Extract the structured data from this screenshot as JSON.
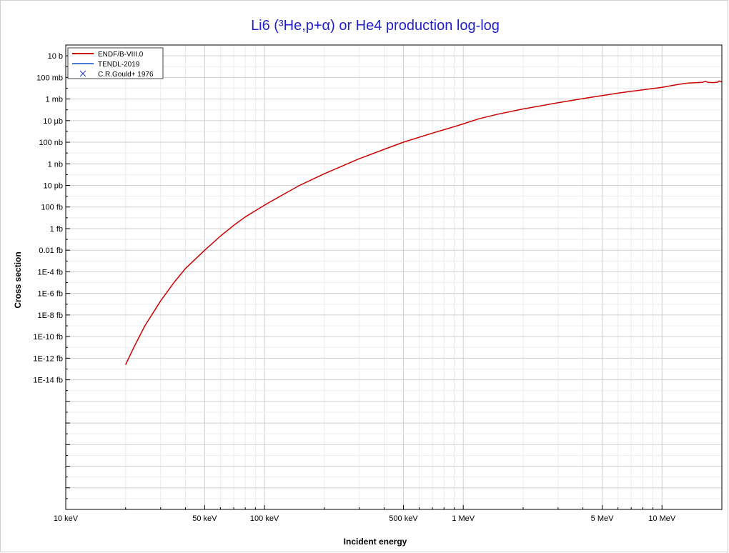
{
  "chart_data": {
    "type": "line",
    "title": "Li6 (³He,p+α) or He4 production log-log",
    "xlabel": "Incident energy",
    "ylabel": "Cross section",
    "x_scale": "log",
    "y_scale": "log",
    "x_unit": "MeV",
    "y_unit": "barn",
    "xlim": [
      0.01,
      20
    ],
    "ylim": [
      1e-41,
      100
    ],
    "grid": true,
    "legend_position": "top-left",
    "x_ticks": [
      {
        "value": 0.01,
        "label": "10 keV"
      },
      {
        "value": 0.05,
        "label": "50 keV"
      },
      {
        "value": 0.1,
        "label": "100 keV"
      },
      {
        "value": 0.5,
        "label": "500 keV"
      },
      {
        "value": 1,
        "label": "1 MeV"
      },
      {
        "value": 5,
        "label": "5 MeV"
      },
      {
        "value": 10,
        "label": "10 MeV"
      }
    ],
    "y_ticks": [
      {
        "value": 10,
        "label": "10 b"
      },
      {
        "value": 0.1,
        "label": "100 mb"
      },
      {
        "value": 0.001,
        "label": "1 mb"
      },
      {
        "value": 1e-05,
        "label": "10 µb"
      },
      {
        "value": 1e-07,
        "label": "100 nb"
      },
      {
        "value": 1e-09,
        "label": "1 nb"
      },
      {
        "value": 1e-11,
        "label": "10 pb"
      },
      {
        "value": 1e-13,
        "label": "100 fb"
      },
      {
        "value": 1e-15,
        "label": "1 fb"
      },
      {
        "value": 1e-17,
        "label": "0.01 fb"
      },
      {
        "value": 1e-19,
        "label": "1E-4 fb"
      },
      {
        "value": 1e-21,
        "label": "1E-6 fb"
      },
      {
        "value": 1e-23,
        "label": "1E-8 fb"
      },
      {
        "value": 1e-25,
        "label": "1E-10 fb"
      },
      {
        "value": 1e-27,
        "label": "1E-12 fb"
      },
      {
        "value": 1e-29,
        "label": "1E-14 fb"
      }
    ],
    "series": [
      {
        "name": "ENDF/B-VIII.0",
        "kind": "line",
        "color": "#cc0000",
        "points": [
          [
            0.02,
            2.5e-28
          ],
          [
            0.022,
            1e-26
          ],
          [
            0.025,
            1e-24
          ],
          [
            0.03,
            2e-22
          ],
          [
            0.035,
            1e-20
          ],
          [
            0.04,
            2e-19
          ],
          [
            0.05,
            1e-17
          ],
          [
            0.06,
            2e-16
          ],
          [
            0.07,
            2e-15
          ],
          [
            0.08,
            1.2e-14
          ],
          [
            0.1,
            1.5e-13
          ],
          [
            0.12,
            1e-12
          ],
          [
            0.15,
            1e-11
          ],
          [
            0.2,
            1.2e-10
          ],
          [
            0.25,
            7e-10
          ],
          [
            0.3,
            3e-09
          ],
          [
            0.4,
            2.2e-08
          ],
          [
            0.5,
            1e-07
          ],
          [
            0.7,
            7e-07
          ],
          [
            0.85,
            2e-06
          ],
          [
            1.0,
            5e-06
          ],
          [
            1.2,
            1.5e-05
          ],
          [
            1.5,
            4e-05
          ],
          [
            2.0,
            0.00012
          ],
          [
            3.0,
            0.00045
          ],
          [
            4.0,
            0.0011
          ],
          [
            5.0,
            0.0021
          ],
          [
            6.0,
            0.0035
          ],
          [
            7.0,
            0.0052
          ],
          [
            8.0,
            0.007
          ],
          [
            10.0,
            0.012
          ],
          [
            12.0,
            0.022
          ],
          [
            13.5,
            0.03
          ],
          [
            15.0,
            0.033
          ],
          [
            16.0,
            0.035
          ],
          [
            16.5,
            0.043
          ],
          [
            17.0,
            0.035
          ],
          [
            18.0,
            0.033
          ],
          [
            19.0,
            0.036
          ],
          [
            19.4,
            0.047
          ],
          [
            20.0,
            0.038
          ]
        ]
      },
      {
        "name": "TENDL-2019",
        "kind": "line",
        "color": "#4a78d6",
        "points": []
      },
      {
        "name": "C.R.Gould+ 1976",
        "kind": "marker",
        "color": "#2030c0",
        "points": []
      }
    ]
  }
}
